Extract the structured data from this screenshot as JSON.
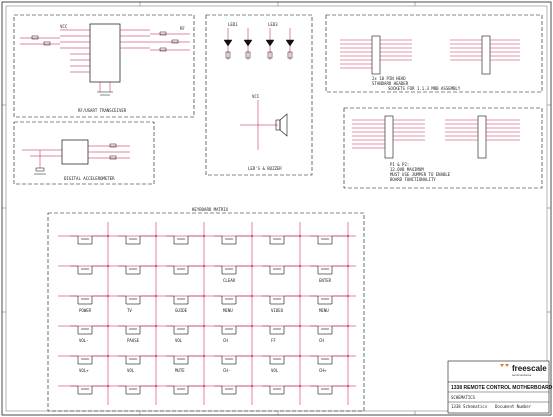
{
  "blocks": {
    "rf": "RF/USART TRANSCEIVER",
    "leds": "LED'S & BUZZER",
    "sockets": "SOCKETS FOR 1.1.3 MRB ASSEMBLY",
    "accel": "DIGITAL ACCELEROMETER",
    "keypad": "KEYBOARD MATRIX"
  },
  "notes": {
    "header_note_1": "2x 10 PIN HEAD",
    "header_note_2": "STANDARD HEADER",
    "power_note_1": "P1 & P2:",
    "power_note_2": "12.0VB MAXIMUM",
    "power_note_3": "MUST USE JUMPER TO ENABLE",
    "power_note_4": "BOARD FUNCTIONALITY"
  },
  "keys": [
    "",
    "",
    "",
    "",
    "",
    "",
    "",
    "",
    "",
    "CLEAR",
    "",
    "ENTER",
    "POWER",
    "TV",
    "GUIDE",
    "MENU",
    "VIDEO",
    "MENU",
    "VOL-",
    "PAUSE",
    "VOL",
    "CH",
    "FF",
    "CH",
    "VOL+",
    "VOL",
    "MUTE",
    "CH-",
    "VOL",
    "CH+",
    "",
    "",
    "",
    "",
    "",
    ""
  ],
  "titleblock": {
    "brand": "freescale",
    "brand_sub": "semiconductor",
    "title": "1338 REMOTE CONTROL MOTHERBOARD",
    "sub": "SCHEMATICS",
    "line1": "1338 Schematics",
    "line2": "Document Number"
  },
  "colors": {
    "wire": "#c0143c",
    "ink": "#111111",
    "border": "#222222"
  }
}
